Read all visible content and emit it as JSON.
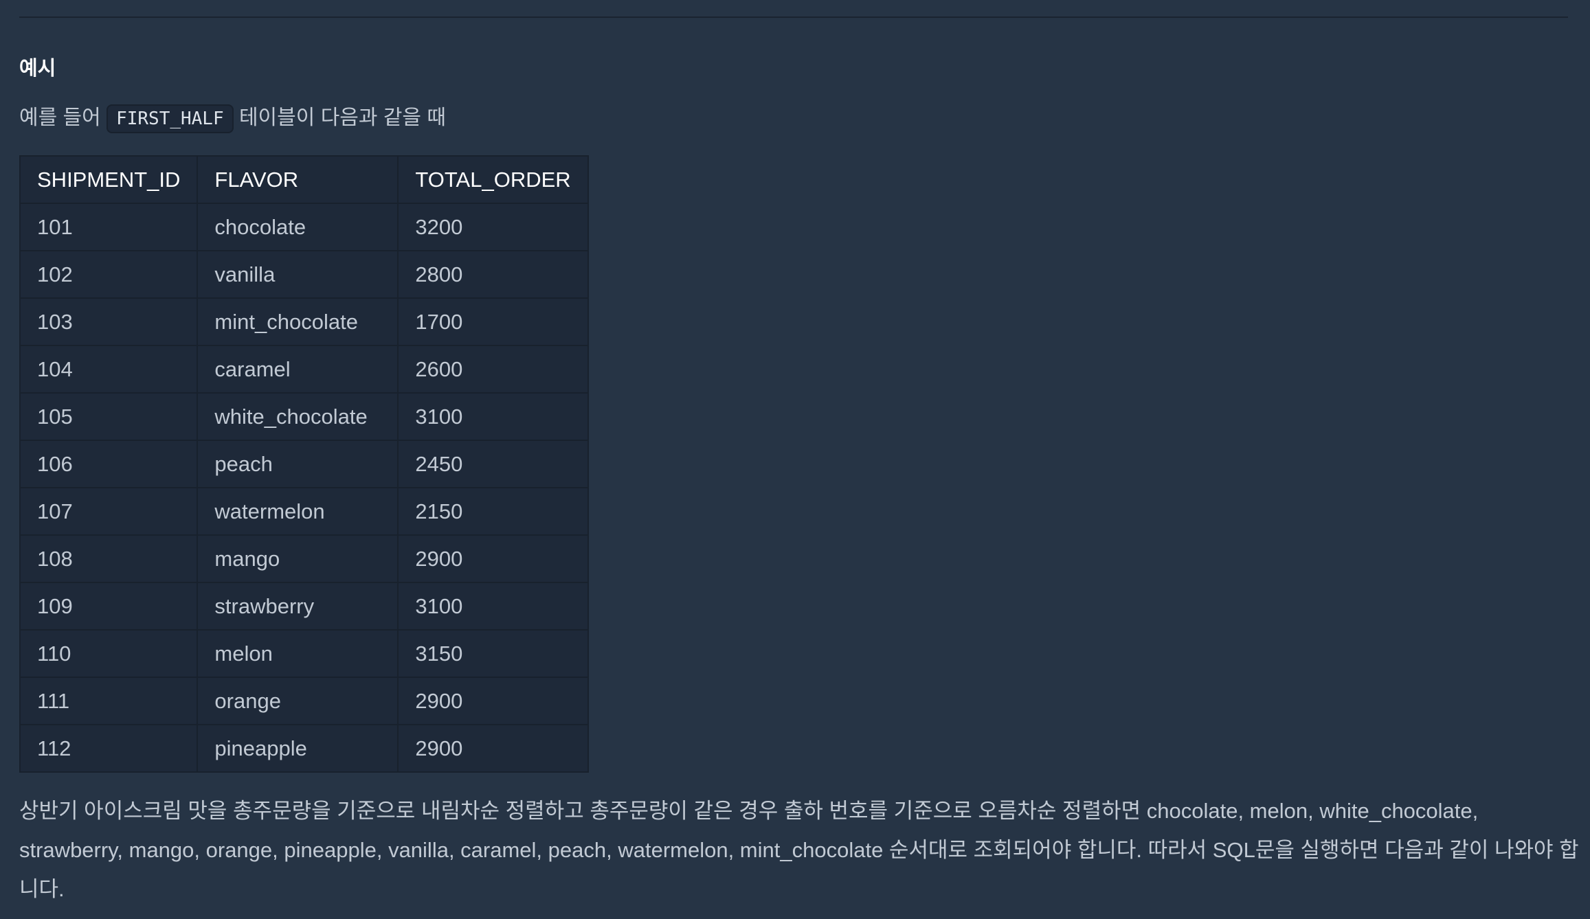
{
  "section": {
    "heading": "예시",
    "intro_before": "예를 들어 ",
    "intro_code": "FIRST_HALF",
    "intro_after": " 테이블이 다음과 같을 때"
  },
  "table": {
    "headers": [
      "SHIPMENT_ID",
      "FLAVOR",
      "TOTAL_ORDER"
    ],
    "rows": [
      [
        "101",
        "chocolate",
        "3200"
      ],
      [
        "102",
        "vanilla",
        "2800"
      ],
      [
        "103",
        "mint_chocolate",
        "1700"
      ],
      [
        "104",
        "caramel",
        "2600"
      ],
      [
        "105",
        "white_chocolate",
        "3100"
      ],
      [
        "106",
        "peach",
        "2450"
      ],
      [
        "107",
        "watermelon",
        "2150"
      ],
      [
        "108",
        "mango",
        "2900"
      ],
      [
        "109",
        "strawberry",
        "3100"
      ],
      [
        "110",
        "melon",
        "3150"
      ],
      [
        "111",
        "orange",
        "2900"
      ],
      [
        "112",
        "pineapple",
        "2900"
      ]
    ]
  },
  "summary": "상반기 아이스크림 맛을 총주문량을 기준으로 내림차순 정렬하고 총주문량이 같은 경우 출하 번호를 기준으로 오름차순 정렬하면 chocolate, melon, white_chocolate, strawberry, mango, orange, pineapple, vanilla, caramel, peach, watermelon, mint_chocolate 순서대로 조회되어야 합니다. 따라서 SQL문을 실행하면 다음과 같이 나와야 합니다."
}
